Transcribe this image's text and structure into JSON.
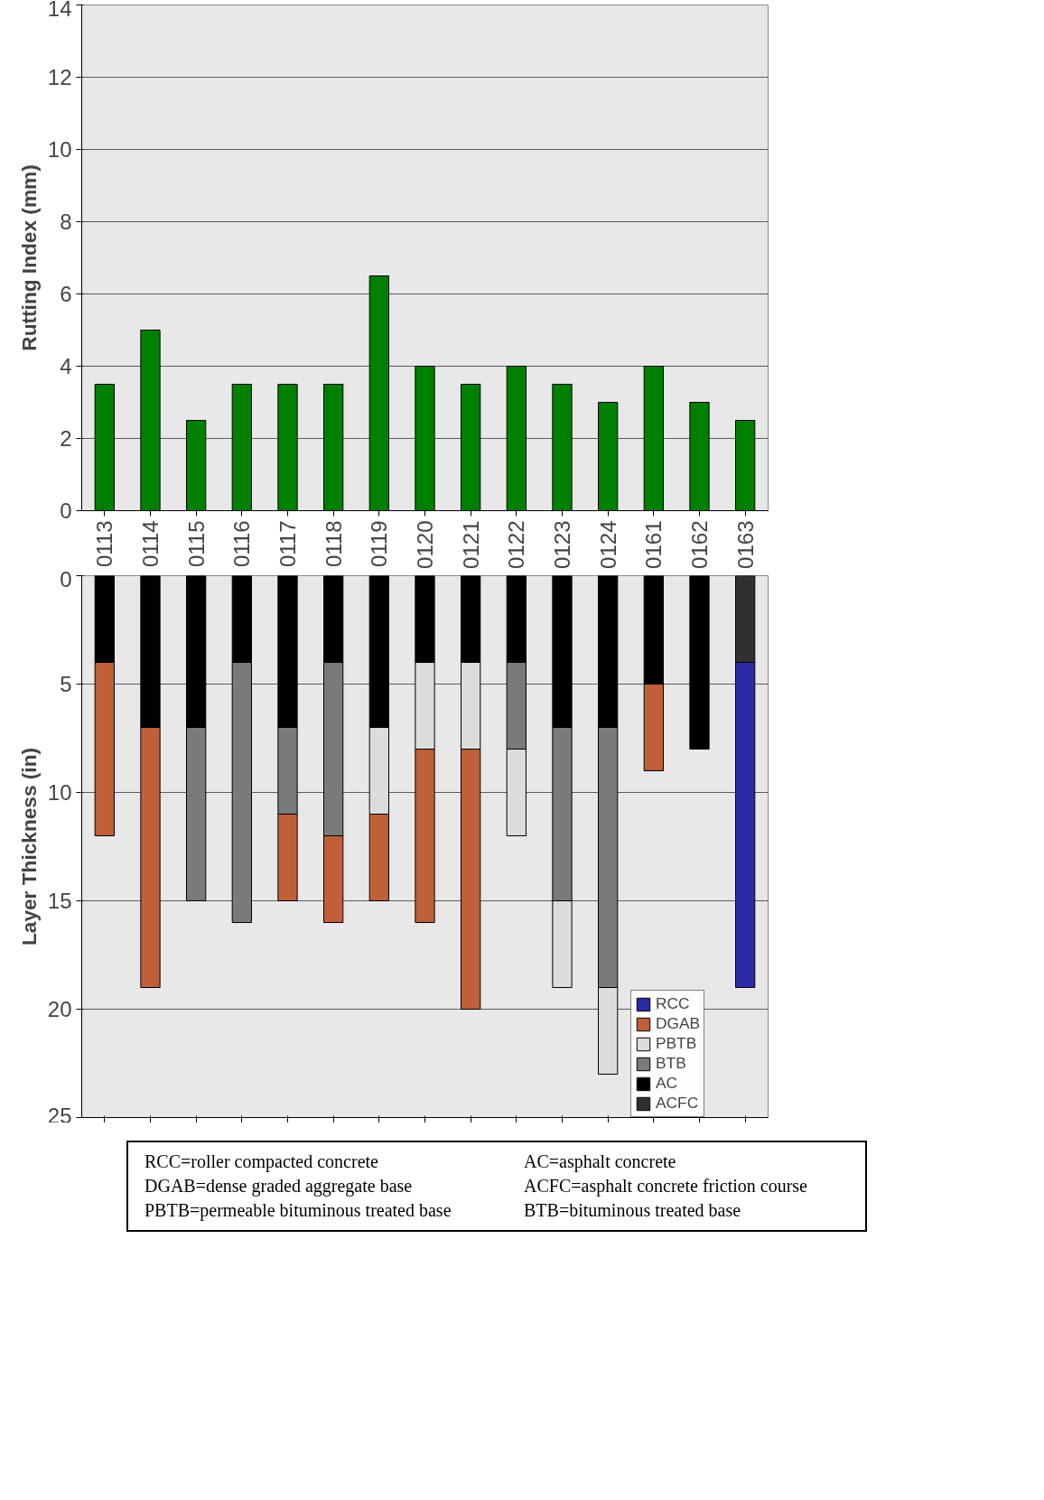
{
  "chart_data": [
    {
      "type": "bar",
      "ylabel": "Rutting Index (mm)",
      "categories": [
        "0113",
        "0114",
        "0115",
        "0116",
        "0117",
        "0118",
        "0119",
        "0120",
        "0121",
        "0122",
        "0123",
        "0124",
        "0161",
        "0162",
        "0163"
      ],
      "values": [
        3.5,
        5,
        2.5,
        3.5,
        3.5,
        3.5,
        6.5,
        4,
        3.5,
        4,
        3.5,
        3,
        4,
        3,
        2.5
      ],
      "color": "#008000",
      "ylim": [
        0,
        14
      ],
      "yticks": [
        0,
        2,
        4,
        6,
        8,
        10,
        12,
        14
      ],
      "grid": "y"
    },
    {
      "type": "bar",
      "stacked": true,
      "ylabel": "Layer Thickness (in)",
      "categories": [
        "0113",
        "0114",
        "0115",
        "0116",
        "0117",
        "0118",
        "0119",
        "0120",
        "0121",
        "0122",
        "0123",
        "0124",
        "0161",
        "0162",
        "0163"
      ],
      "tick_labels": "y",
      "ylim": [
        25,
        0
      ],
      "yticks": [
        0,
        5,
        10,
        15,
        20,
        25
      ],
      "grid": "y",
      "legend": "bottom right",
      "series": [
        {
          "name": "ACFC",
          "color": "#303030",
          "values": [
            null,
            null,
            null,
            null,
            null,
            null,
            null,
            null,
            null,
            null,
            null,
            null,
            null,
            null,
            4
          ]
        },
        {
          "name": "AC",
          "color": "#000000",
          "values": [
            4,
            7,
            7,
            4,
            7,
            4,
            7,
            4,
            4,
            4,
            7,
            7,
            5,
            8,
            null
          ]
        },
        {
          "name": "BTB",
          "color": "#7a7a7a",
          "values": [
            null,
            null,
            8,
            12,
            4,
            8,
            null,
            null,
            null,
            4,
            8,
            12,
            null,
            null,
            null
          ]
        },
        {
          "name": "PBTB",
          "color": "#dcdcdc",
          "values": [
            null,
            null,
            null,
            null,
            null,
            null,
            4,
            4,
            4,
            4,
            4,
            4,
            null,
            null,
            null
          ]
        },
        {
          "name": "DGAB",
          "color": "#c0603a",
          "values": [
            8,
            12,
            null,
            null,
            4,
            4,
            4,
            8,
            12,
            null,
            null,
            null,
            4,
            null,
            null
          ]
        },
        {
          "name": "RCC",
          "color": "#2b2ba8",
          "values": [
            null,
            null,
            null,
            null,
            null,
            null,
            null,
            null,
            null,
            null,
            null,
            null,
            null,
            null,
            15
          ]
        }
      ],
      "annotations": [
        "RCC=roller compacted concrete",
        "DGAB=dense graded aggregate base",
        "PBTB=permeable bituminous treated base",
        "AC=asphalt concrete",
        "ACFC=asphalt concrete friction course",
        "BTB=bituminous treated base"
      ]
    }
  ]
}
